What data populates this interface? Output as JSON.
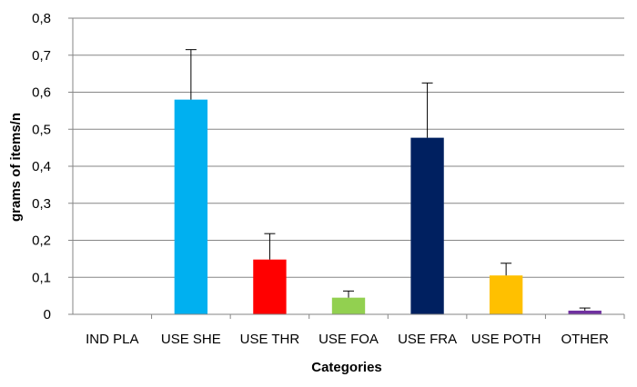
{
  "chart_data": {
    "type": "bar",
    "title": "",
    "xlabel": "Categories",
    "ylabel": "grams of items/n",
    "categories": [
      "IND PLA",
      "USE SHE",
      "USE THR",
      "USE FOA",
      "USE FRA",
      "USE POTH",
      "OTHER"
    ],
    "values": [
      0,
      0.58,
      0.148,
      0.045,
      0.477,
      0.105,
      0.01
    ],
    "error": [
      0,
      0.135,
      0.07,
      0.018,
      0.148,
      0.033,
      0.007
    ],
    "colors": [
      "#00b0f0",
      "#00b0f0",
      "#ff0000",
      "#92d050",
      "#002060",
      "#ffc000",
      "#7030a0"
    ],
    "ylim": [
      0,
      0.8
    ],
    "yticks": [
      0,
      0.1,
      0.2,
      0.3,
      0.4,
      0.5,
      0.6,
      0.7,
      0.8
    ],
    "ytick_labels": [
      "0",
      "0,1",
      "0,2",
      "0,3",
      "0,4",
      "0,5",
      "0,6",
      "0,7",
      "0,8"
    ],
    "grid": true,
    "legend": "none",
    "gridline_color": "#868686",
    "axis_color": "#868686",
    "errorbar_color": "#000000"
  }
}
